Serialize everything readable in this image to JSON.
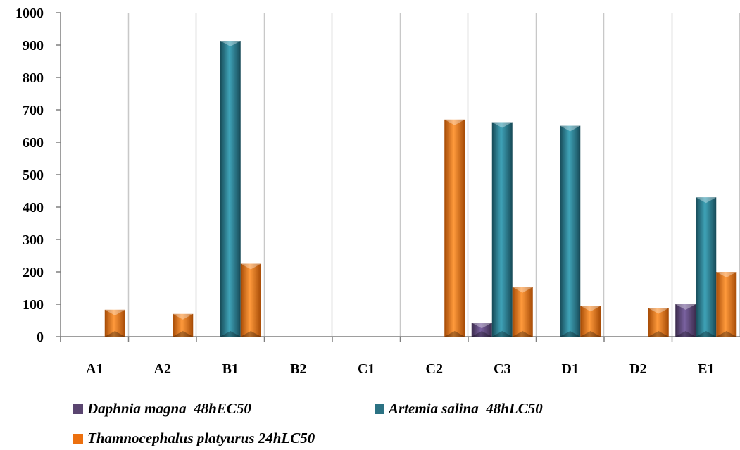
{
  "chart_data": {
    "type": "bar",
    "categories": [
      "A1",
      "A2",
      "B1",
      "B2",
      "C1",
      "C2",
      "C3",
      "D1",
      "D2",
      "E1"
    ],
    "series": [
      {
        "name": "Daphnia magna  48hEC50",
        "color": "#5a4570",
        "values": [
          0,
          0,
          0,
          0,
          0,
          0,
          43,
          0,
          0,
          100
        ]
      },
      {
        "name": "Artemia salina  48hLC50",
        "color": "#2b7283",
        "values": [
          0,
          0,
          913,
          0,
          0,
          0,
          662,
          651,
          0,
          430
        ]
      },
      {
        "name": "Thamnocephalus platyurus 24hLC50",
        "color": "#ec700f",
        "values": [
          83,
          70,
          225,
          0,
          0,
          670,
          153,
          95,
          88,
          200
        ]
      }
    ],
    "ylim": [
      0,
      1000
    ],
    "yticks": [
      0,
      100,
      200,
      300,
      400,
      500,
      600,
      700,
      800,
      900,
      1000
    ],
    "grid": "vertical",
    "legend_position": "bottom"
  }
}
